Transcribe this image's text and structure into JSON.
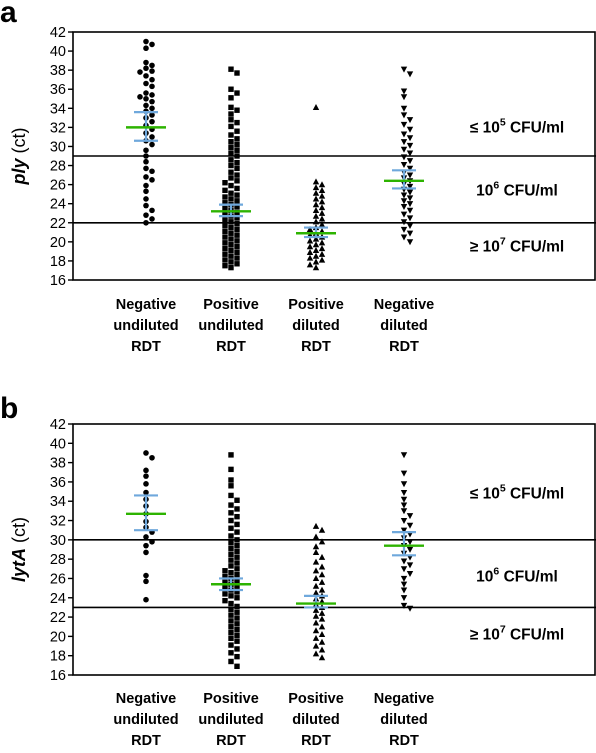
{
  "chart_data": [
    {
      "panel": "a",
      "type": "scatter",
      "ylabel_italic": "ply",
      "ylabel_rest": " (ct)",
      "yticks": [
        16,
        18,
        20,
        22,
        24,
        26,
        28,
        30,
        32,
        34,
        36,
        38,
        40,
        42
      ],
      "ylim": [
        16,
        42
      ],
      "categories": [
        [
          "Negative",
          "undiluted",
          "RDT"
        ],
        [
          "Positive",
          "undiluted",
          "RDT"
        ],
        [
          "Positive",
          "diluted",
          "RDT"
        ],
        [
          "Negative",
          "diluted",
          "RDT"
        ]
      ],
      "marker_shapes": [
        "circle",
        "square",
        "triangle-up",
        "triangle-down"
      ],
      "thresholds": [
        29,
        22
      ],
      "bands": [
        {
          "pre": "≤ 10",
          "exp": "5",
          "post": " CFU/ml",
          "y": 32
        },
        {
          "pre": "10",
          "exp": "6",
          "post": " CFU/ml",
          "y": 25.4
        },
        {
          "pre": "≥ 10",
          "exp": "7",
          "post": " CFU/ml",
          "y": 19.5
        }
      ],
      "medians": [
        32.0,
        23.2,
        20.9,
        26.4
      ],
      "ci_low": [
        30.6,
        22.7,
        20.5,
        25.6
      ],
      "ci_high": [
        33.6,
        23.9,
        21.5,
        27.5
      ],
      "series": [
        {
          "values": [
            41.0,
            40.7,
            40.3,
            38.8,
            38.5,
            38.2,
            37.9,
            37.8,
            37.4,
            37.0,
            36.6,
            36.3,
            35.6,
            35.4,
            35.2,
            35.0,
            34.7,
            34.3,
            34.0,
            33.7,
            33.3,
            33.0,
            32.6,
            32.2,
            31.8,
            31.4,
            31.0,
            30.6,
            30.2,
            29.6,
            29.0,
            28.4,
            27.7,
            27.4,
            26.8,
            26.5,
            25.9,
            25.3,
            24.5,
            23.8,
            23.3,
            22.8,
            22.4,
            22.0
          ]
        },
        {
          "values": [
            38.1,
            37.7,
            36.0,
            35.6,
            35.1,
            34.1,
            33.8,
            33.4,
            32.8,
            32.5,
            32.1,
            31.6,
            31.2,
            30.8,
            30.5,
            30.2,
            29.9,
            29.6,
            29.3,
            29.0,
            28.6,
            28.3,
            28.0,
            27.7,
            27.3,
            27.0,
            26.7,
            26.4,
            26.2,
            25.9,
            25.6,
            25.4,
            25.1,
            24.9,
            24.7,
            24.5,
            24.3,
            24.1,
            23.9,
            23.7,
            23.5,
            23.3,
            23.1,
            22.9,
            22.7,
            22.5,
            22.3,
            22.1,
            21.9,
            21.7,
            21.5,
            21.3,
            21.1,
            20.9,
            20.7,
            20.5,
            20.3,
            20.1,
            19.9,
            19.7,
            19.5,
            19.3,
            19.1,
            18.9,
            18.7,
            18.5,
            18.3,
            18.1,
            17.9,
            17.7,
            17.5,
            17.3
          ]
        },
        {
          "values": [
            34.1,
            26.3,
            26.0,
            25.7,
            25.4,
            25.1,
            24.8,
            24.5,
            24.2,
            23.9,
            23.6,
            23.3,
            23.0,
            22.7,
            22.4,
            22.1,
            21.8,
            21.5,
            21.3,
            21.1,
            20.9,
            20.7,
            20.5,
            20.3,
            20.1,
            19.9,
            19.7,
            19.5,
            19.3,
            19.1,
            18.9,
            18.7,
            18.5,
            18.3,
            18.1,
            17.9,
            17.6,
            17.3
          ]
        },
        {
          "values": [
            38.1,
            37.6,
            35.8,
            35.2,
            34.0,
            33.3,
            32.8,
            32.3,
            31.8,
            31.3,
            30.9,
            30.5,
            30.1,
            29.7,
            29.3,
            28.9,
            28.5,
            28.1,
            27.7,
            27.3,
            27.0,
            26.7,
            26.4,
            26.1,
            25.8,
            25.5,
            25.2,
            24.9,
            24.6,
            24.3,
            24.0,
            23.7,
            23.3,
            22.9,
            22.5,
            22.1,
            21.7,
            21.3,
            20.9,
            20.5,
            20.0
          ]
        }
      ]
    },
    {
      "panel": "b",
      "type": "scatter",
      "ylabel_italic": "lytA",
      "ylabel_rest": " (ct)",
      "yticks": [
        16,
        18,
        20,
        22,
        24,
        26,
        28,
        30,
        32,
        34,
        36,
        38,
        40,
        42
      ],
      "ylim": [
        16,
        42
      ],
      "categories": [
        [
          "Negative",
          "undiluted",
          "RDT"
        ],
        [
          "Positive",
          "undiluted",
          "RDT"
        ],
        [
          "Positive",
          "diluted",
          "RDT"
        ],
        [
          "Negative",
          "diluted",
          "RDT"
        ]
      ],
      "marker_shapes": [
        "circle",
        "square",
        "triangle-up",
        "triangle-down"
      ],
      "thresholds": [
        30,
        23
      ],
      "bands": [
        {
          "pre": "≤ 10",
          "exp": "5",
          "post": " CFU/ml",
          "y": 34.8
        },
        {
          "pre": "10",
          "exp": "6",
          "post": " CFU/ml",
          "y": 26.2
        },
        {
          "pre": "≥ 10",
          "exp": "7",
          "post": " CFU/ml",
          "y": 20.2
        }
      ],
      "medians": [
        32.7,
        25.4,
        23.4,
        29.4
      ],
      "ci_low": [
        31.0,
        24.8,
        23.0,
        28.4
      ],
      "ci_high": [
        34.6,
        26.0,
        24.2,
        30.8
      ],
      "series": [
        {
          "values": [
            39.0,
            38.5,
            37.2,
            36.6,
            35.8,
            34.9,
            34.2,
            33.5,
            32.7,
            31.9,
            31.3,
            30.8,
            30.3,
            29.8,
            29.4,
            28.7,
            26.3,
            25.7,
            23.8
          ]
        },
        {
          "values": [
            38.8,
            37.3,
            36.2,
            35.6,
            34.6,
            34.1,
            33.6,
            33.2,
            32.8,
            32.4,
            32.0,
            31.6,
            31.2,
            30.8,
            30.4,
            30.0,
            29.7,
            29.4,
            29.1,
            28.8,
            28.5,
            28.2,
            27.9,
            27.6,
            27.3,
            27.0,
            26.8,
            26.6,
            26.4,
            26.2,
            26.0,
            25.8,
            25.6,
            25.4,
            25.2,
            25.0,
            24.8,
            24.6,
            24.4,
            24.2,
            24.0,
            23.7,
            23.4,
            23.1,
            22.8,
            22.5,
            22.2,
            21.9,
            21.6,
            21.3,
            21.0,
            20.7,
            20.4,
            20.1,
            19.8,
            19.5,
            19.1,
            18.7,
            18.3,
            17.9,
            17.4,
            16.9
          ]
        },
        {
          "values": [
            31.4,
            31.0,
            30.3,
            29.8,
            29.3,
            28.7,
            28.2,
            27.7,
            27.2,
            26.8,
            26.4,
            26.0,
            25.6,
            25.2,
            24.8,
            24.5,
            24.2,
            23.9,
            23.6,
            23.3,
            23.0,
            22.7,
            22.4,
            22.1,
            21.8,
            21.4,
            21.0,
            20.6,
            20.2,
            19.8,
            19.4,
            19.0,
            18.6,
            18.2,
            17.8
          ]
        },
        {
          "values": [
            38.8,
            36.9,
            35.8,
            34.9,
            34.2,
            33.6,
            33.0,
            32.5,
            32.0,
            31.5,
            31.0,
            30.6,
            30.2,
            29.8,
            29.4,
            29.0,
            28.6,
            28.2,
            27.8,
            27.4,
            27.0,
            26.5,
            26.0,
            25.4,
            24.8,
            24.0,
            23.2,
            22.9
          ]
        }
      ]
    }
  ]
}
